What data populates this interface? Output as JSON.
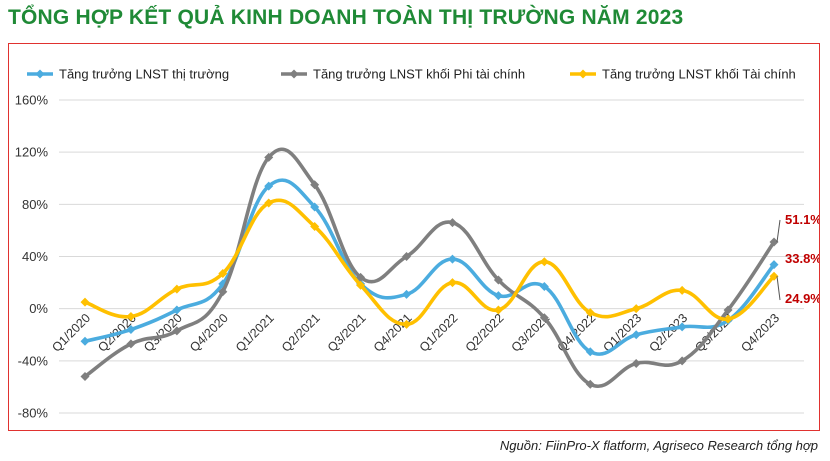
{
  "title": "TỔNG HỢP KẾT QUẢ KINH DOANH TOÀN THỊ TRƯỜNG NĂM 2023",
  "source": "Nguồn: FiinPro-X flatform, Agriseco Research tổng hợp",
  "chart_data": {
    "type": "line",
    "title": "",
    "xlabel": "",
    "ylabel": "",
    "categories": [
      "Q1/2020",
      "Q2/2020",
      "Q3/2020",
      "Q4/2020",
      "Q1/2021",
      "Q2/2021",
      "Q3/2021",
      "Q4/2021",
      "Q1/2022",
      "Q2/2022",
      "Q3/2022",
      "Q4/2022",
      "Q1/2023",
      "Q2/2023",
      "Q3/2023",
      "Q4/2023"
    ],
    "ylim": [
      -80,
      160
    ],
    "yticks": [
      -80,
      -40,
      0,
      40,
      80,
      120,
      160
    ],
    "ytick_labels": [
      "-80%",
      "-40%",
      "0%",
      "40%",
      "80%",
      "120%",
      "160%"
    ],
    "grid": true,
    "legend_position": "top",
    "series": [
      {
        "name": "Tăng trưởng LNST thị trường",
        "color": "#4bacdf",
        "values": [
          -25,
          -16,
          -1,
          19,
          94,
          78,
          19,
          11,
          38,
          10,
          17,
          -33,
          -20,
          -14,
          -9,
          33.8
        ]
      },
      {
        "name": "Tăng trưởng LNST khối Phi tài chính",
        "color": "#7f7f7f",
        "values": [
          -52,
          -27,
          -17,
          13,
          116,
          95,
          24,
          40,
          66,
          22,
          -7,
          -58,
          -42,
          -40,
          -1,
          51.1
        ]
      },
      {
        "name": "Tăng trưởng LNST khối Tài chính",
        "color": "#ffc000",
        "values": [
          5,
          -6,
          15,
          27,
          81,
          63,
          18,
          -12,
          20,
          -1,
          36,
          -3,
          0,
          14,
          -8,
          24.9
        ]
      }
    ],
    "end_labels": [
      {
        "series": 1,
        "text": "51.1%"
      },
      {
        "series": 0,
        "text": "33.8%"
      },
      {
        "series": 2,
        "text": "24.9%"
      }
    ]
  }
}
